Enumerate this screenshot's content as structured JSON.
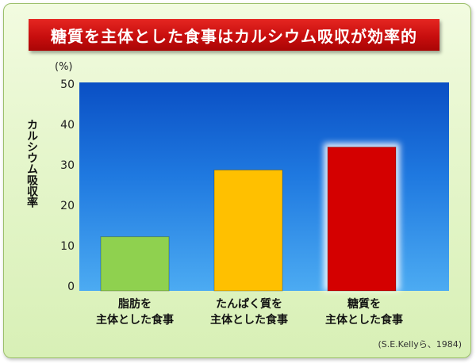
{
  "title": "糖質を主体とした食事はカルシウム吸収が効率的",
  "unit": "(%)",
  "source": "(S.E.Kellyら、1984)",
  "chart_data": {
    "type": "bar",
    "title": "糖質を主体とした食事はカルシウム吸収が効率的",
    "xlabel": "",
    "ylabel": "カルシウム吸収率",
    "ylim": [
      0,
      50
    ],
    "yticks": [
      0,
      10,
      20,
      30,
      40,
      50
    ],
    "categories": [
      "脂肪を\n主体とした食事",
      "たんぱく質を\n主体とした食事",
      "糖質を\n主体とした食事"
    ],
    "values": [
      13,
      29,
      34.5
    ],
    "colors": [
      "#8fd14f",
      "#ffc000",
      "#d40000"
    ],
    "grid": false,
    "legend": "none"
  }
}
